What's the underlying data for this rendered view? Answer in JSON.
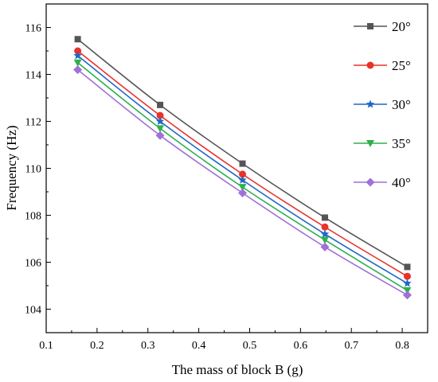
{
  "chart_data": {
    "type": "line",
    "title": "",
    "xlabel": "The mass of block B (g)",
    "ylabel": "Frequency (Hz)",
    "xlim": [
      0.1,
      0.85
    ],
    "ylim": [
      103,
      117
    ],
    "x_ticks": [
      "0.1",
      "0.2",
      "0.3",
      "0.4",
      "0.5",
      "0.6",
      "0.7",
      "0.8"
    ],
    "y_ticks": [
      "104",
      "106",
      "108",
      "110",
      "112",
      "114",
      "116"
    ],
    "x": [
      0.162,
      0.324,
      0.486,
      0.648,
      0.81
    ],
    "grid": false,
    "legend_position": "top-right",
    "series": [
      {
        "name": "20°",
        "color": "#555555",
        "marker": "square",
        "values": [
          115.5,
          112.7,
          110.2,
          107.9,
          105.8
        ]
      },
      {
        "name": "25°",
        "color": "#e8322a",
        "marker": "circle",
        "values": [
          115.0,
          112.25,
          109.75,
          107.5,
          105.4
        ]
      },
      {
        "name": "30°",
        "color": "#1f67c8",
        "marker": "star",
        "values": [
          114.8,
          112.0,
          109.5,
          107.2,
          105.1
        ]
      },
      {
        "name": "35°",
        "color": "#2eb04b",
        "marker": "triangle-down",
        "values": [
          114.5,
          111.7,
          109.2,
          106.95,
          104.8
        ]
      },
      {
        "name": "40°",
        "color": "#a070d8",
        "marker": "diamond",
        "values": [
          114.2,
          111.4,
          108.95,
          106.65,
          104.6
        ]
      }
    ]
  }
}
